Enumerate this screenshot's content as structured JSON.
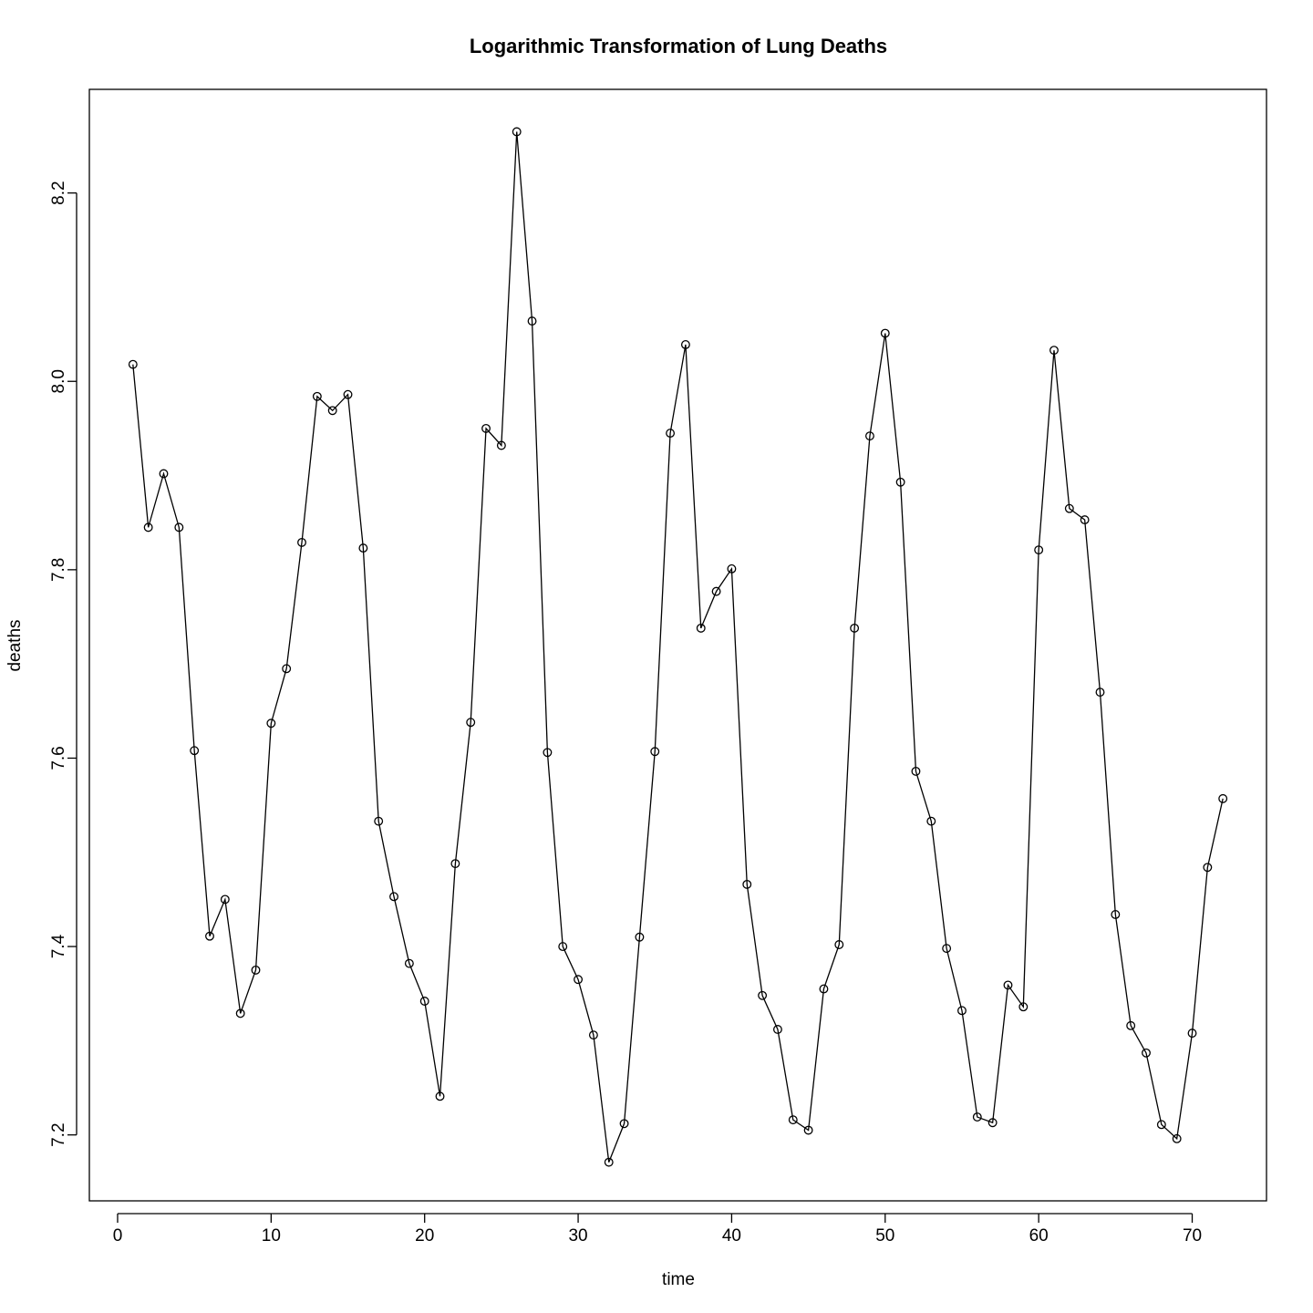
{
  "chart_data": {
    "type": "line",
    "title": "Logarithmic Transformation of Lung Deaths",
    "xlabel": "time",
    "ylabel": "deaths",
    "xlim": [
      -1.84,
      74.84
    ],
    "ylim": [
      7.13,
      8.31
    ],
    "xticks": [
      0,
      10,
      20,
      30,
      40,
      50,
      60,
      70
    ],
    "yticks": [
      7.2,
      7.4,
      7.6,
      7.8,
      8.0,
      8.2
    ],
    "ytick_labels": [
      "7.2",
      "7.4",
      "7.6",
      "7.8",
      "8.0",
      "8.2"
    ],
    "grid": false,
    "legend": "none",
    "markers": "open-circle",
    "x": [
      1,
      2,
      3,
      4,
      5,
      6,
      7,
      8,
      9,
      10,
      11,
      12,
      13,
      14,
      15,
      16,
      17,
      18,
      19,
      20,
      21,
      22,
      23,
      24,
      25,
      26,
      27,
      28,
      29,
      30,
      31,
      32,
      33,
      34,
      35,
      36,
      37,
      38,
      39,
      40,
      41,
      42,
      43,
      44,
      45,
      46,
      47,
      48,
      49,
      50,
      51,
      52,
      53,
      54,
      55,
      56,
      57,
      58,
      59,
      60,
      61,
      62,
      63,
      64,
      65,
      66,
      67,
      68,
      69,
      70,
      71,
      72
    ],
    "y": [
      8.018,
      7.845,
      7.902,
      7.845,
      7.608,
      7.411,
      7.45,
      7.329,
      7.375,
      7.637,
      7.695,
      7.829,
      7.984,
      7.969,
      7.986,
      7.823,
      7.533,
      7.453,
      7.382,
      7.342,
      7.241,
      7.488,
      7.638,
      7.95,
      7.932,
      8.265,
      8.064,
      7.606,
      7.4,
      7.365,
      7.306,
      7.171,
      7.212,
      7.41,
      7.607,
      7.945,
      8.039,
      7.738,
      7.777,
      7.801,
      7.466,
      7.348,
      7.312,
      7.216,
      7.205,
      7.355,
      7.402,
      7.738,
      7.942,
      8.051,
      7.893,
      7.586,
      7.533,
      7.398,
      7.332,
      7.219,
      7.213,
      7.359,
      7.336,
      7.821,
      8.033,
      7.865,
      7.853,
      7.67,
      7.434,
      7.316,
      7.287,
      7.211,
      7.196,
      7.308,
      7.484,
      7.557
    ]
  }
}
